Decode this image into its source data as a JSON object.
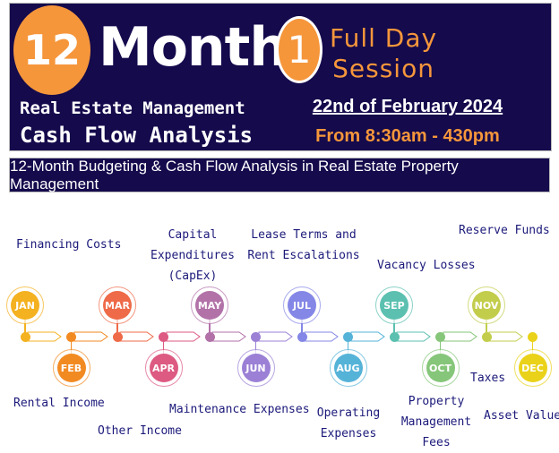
{
  "header": {
    "badge_number": "12",
    "title_word": "Month",
    "subtitle_line1": "Real Estate Management",
    "subtitle_line2": "Cash Flow Analysis",
    "session_number": "1",
    "session_line1": "Full Day",
    "session_line2": "Session",
    "date": "22nd of February 2024",
    "time": "From 8:30am - 430pm"
  },
  "banner": "12-Month Budgeting & Cash Flow Analysis in Real Estate Property Management",
  "colors": {
    "navy": "#140a4c",
    "orange": "#f5963b",
    "label_text": "#1c1a7a"
  },
  "timeline": {
    "months": [
      {
        "label": "JAN",
        "color": "#f4b120",
        "position": "top"
      },
      {
        "label": "FEB",
        "color": "#f28a22",
        "position": "bottom"
      },
      {
        "label": "MAR",
        "color": "#ee6a48",
        "position": "top"
      },
      {
        "label": "APR",
        "color": "#dd5a82",
        "position": "bottom"
      },
      {
        "label": "MAY",
        "color": "#b272a8",
        "position": "top"
      },
      {
        "label": "JUN",
        "color": "#9b80d6",
        "position": "bottom"
      },
      {
        "label": "JUL",
        "color": "#8487e6",
        "position": "top"
      },
      {
        "label": "AUG",
        "color": "#56b3d8",
        "position": "bottom"
      },
      {
        "label": "SEP",
        "color": "#5bc0b0",
        "position": "top"
      },
      {
        "label": "OCT",
        "color": "#86c67a",
        "position": "bottom"
      },
      {
        "label": "NOV",
        "color": "#c3cd4c",
        "position": "top"
      },
      {
        "label": "DEC",
        "color": "#ead21a",
        "position": "bottom"
      }
    ],
    "topics": {
      "financing_costs": "Financing Costs",
      "capex": [
        "Capital",
        "Expenditures",
        "(CapEx)"
      ],
      "lease_terms": [
        "Lease Terms and",
        "Rent Escalations"
      ],
      "reserve_funds": "Reserve Funds",
      "vacancy_losses": "Vacancy Losses",
      "rental_income": "Rental Income",
      "other_income": "Other Income",
      "maintenance_expenses": "Maintenance Expenses",
      "operating_expenses": [
        "Operating",
        "Expenses"
      ],
      "property_management_fees": [
        "Property",
        "Management",
        "Fees"
      ],
      "taxes": "Taxes",
      "asset_value": "Asset Value"
    }
  }
}
